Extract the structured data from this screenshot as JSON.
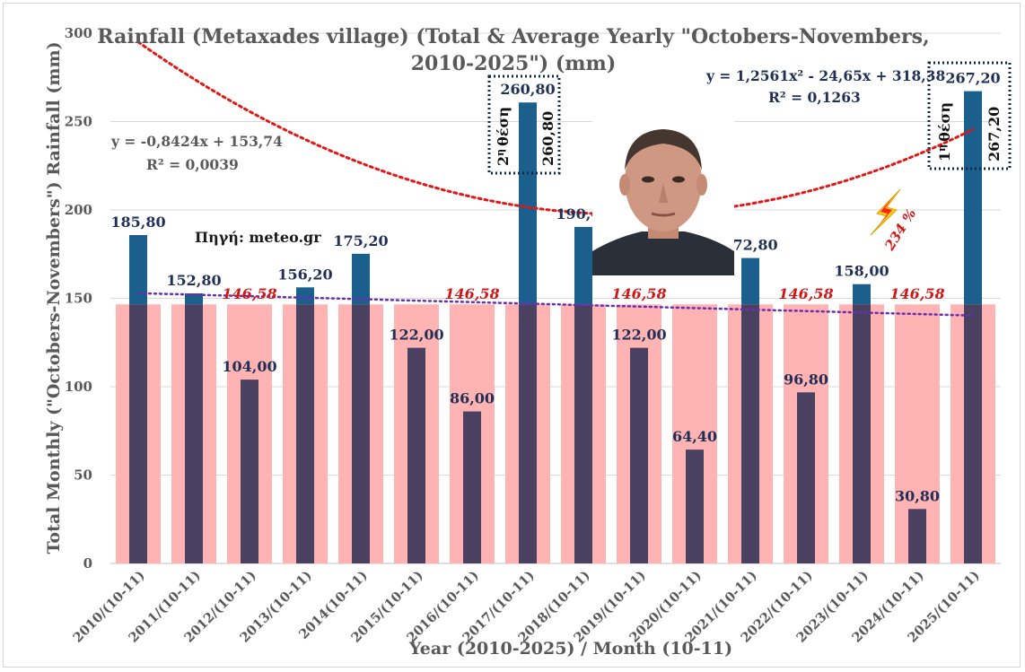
{
  "chart_data": {
    "type": "bar",
    "title": "Rainfall (Metaxades village) (Total & Average Yearly \"Octobers-Novembers, 2010-2025\") (mm)",
    "title_lines": [
      "Rainfall (Metaxades village) (Total & Average Yearly \"Octobers-Novembers,",
      "2010-2025\") (mm)"
    ],
    "xlabel": "Year (2010-2025) / Month (10-11)",
    "ylabel": "Total Monthly (\"Octobers-Novembers\") Rainfall (mm)",
    "ylim": [
      0,
      300
    ],
    "yticks": [
      0,
      50,
      100,
      150,
      200,
      250,
      300
    ],
    "grid": true,
    "categories": [
      "2010/(10-11)",
      "2011/(10-11)",
      "2012/(10-11)",
      "2013/(10-11)",
      "2014(10-11)",
      "2015/(10-11)",
      "2016/(10-11)",
      "2017/(10-11)",
      "2018/(10-11)",
      "2019/(10-11)",
      "2020/(10-11)",
      "2021/(10-11)",
      "2022/(10-11)",
      "2023/(10-11)",
      "2024/(10-11)",
      "2025/(10-11)"
    ],
    "series": [
      {
        "values": [
          185.8,
          152.8,
          104.0,
          156.2,
          175.2,
          122.0,
          86.0,
          260.8,
          190.4,
          122.0,
          64.4,
          172.8,
          96.8,
          158.0,
          30.8,
          267.2
        ],
        "labels": [
          "185,80",
          "152,80",
          "104,00",
          "156,20",
          "175,20",
          "122,00",
          "86,00",
          "260,80",
          "190,40",
          "122,00",
          "64,40",
          "172,80",
          "96,80",
          "158,00",
          "30,80",
          "267,20"
        ],
        "color": "#1b5f8c"
      },
      {
        "values": [
          146.58,
          146.58,
          146.58,
          146.58,
          146.58,
          146.58,
          146.58,
          146.58,
          146.58,
          146.58,
          146.58,
          146.58,
          146.58,
          146.58,
          146.58,
          146.58
        ],
        "label": "146,58",
        "label_indices": [
          2,
          6,
          9,
          12,
          14
        ],
        "color": "#ffb3b3"
      }
    ],
    "trendlines": [
      {
        "kind": "linear",
        "equation": "y = -0,8424x + 153,74",
        "r2": "R² = 0,0039",
        "coef": [
          -0.8424,
          153.74
        ],
        "color": "#6a2fb0"
      },
      {
        "kind": "polynomial",
        "equation": "y = 1,2561x² - 24,65x + 318,38",
        "r2": "R² = 0,1263",
        "coef": [
          1.2561,
          -24.65,
          318.38
        ],
        "color": "#e01818"
      }
    ],
    "annotations": {
      "source": "Πηγή: meteo.gr",
      "rank2": {
        "index": 7,
        "rank": "2",
        "rank_suffix": "η",
        "word": "θέση",
        "value": "260,80"
      },
      "rank1": {
        "index": 15,
        "rank": "1",
        "rank_suffix": "η",
        "word": "θέση",
        "value": "267,20"
      },
      "percent": "234 %"
    },
    "colors": {
      "above_avg": "#1b5f8c",
      "below_avg": "#4a4060",
      "average": "#ffb3b3",
      "average_label": "#d01818",
      "value_label": "#1f2f55",
      "axis_text": "#595959",
      "grid": "#d9d9d9",
      "rank_box": "#0e2a4a",
      "flash": "#ffcf1a",
      "flash_inner": "#ff2020"
    }
  }
}
